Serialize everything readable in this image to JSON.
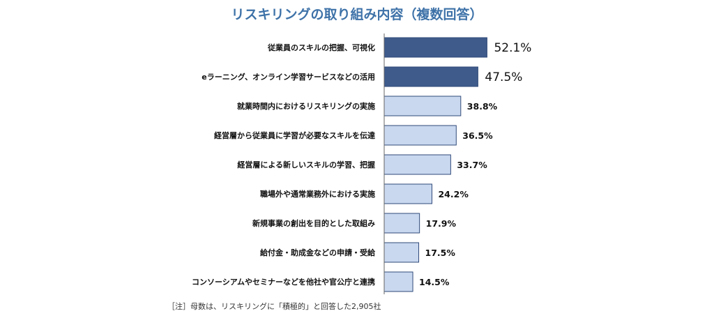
{
  "chart_data": {
    "type": "bar",
    "orientation": "horizontal",
    "title": "リスキリングの取り組み内容（複数回答）",
    "categories": [
      "従業員のスキルの把握、可視化",
      "eラーニング、オンライン学習サービスなどの活用",
      "就業時間内におけるリスキリングの実施",
      "経営層から従業員に学習が必要なスキルを伝達",
      "経営層による新しいスキルの学習、把握",
      "職場外や通常業務外における実施",
      "新規事業の創出を目的とした取組み",
      "給付金・助成金などの申請・受給",
      "コンソーシアムやセミナーなどを他社や官公庁と連携"
    ],
    "values": [
      52.1,
      47.5,
      38.8,
      36.5,
      33.7,
      24.2,
      17.9,
      17.5,
      14.5
    ],
    "value_labels": [
      "52.1%",
      "47.5%",
      "38.8%",
      "36.5%",
      "33.7%",
      "24.2%",
      "17.9%",
      "17.5%",
      "14.5%"
    ],
    "highlighted_count": 2,
    "colors": {
      "highlight": "#3f5b8c",
      "normal": "#c9d8ef",
      "border": "#2f4a78",
      "title": "#3e72a8"
    },
    "xlim": [
      0,
      60
    ],
    "grid": false,
    "note": "［注］母数は、リスキリングに「積極的」と回答した2,905社"
  }
}
